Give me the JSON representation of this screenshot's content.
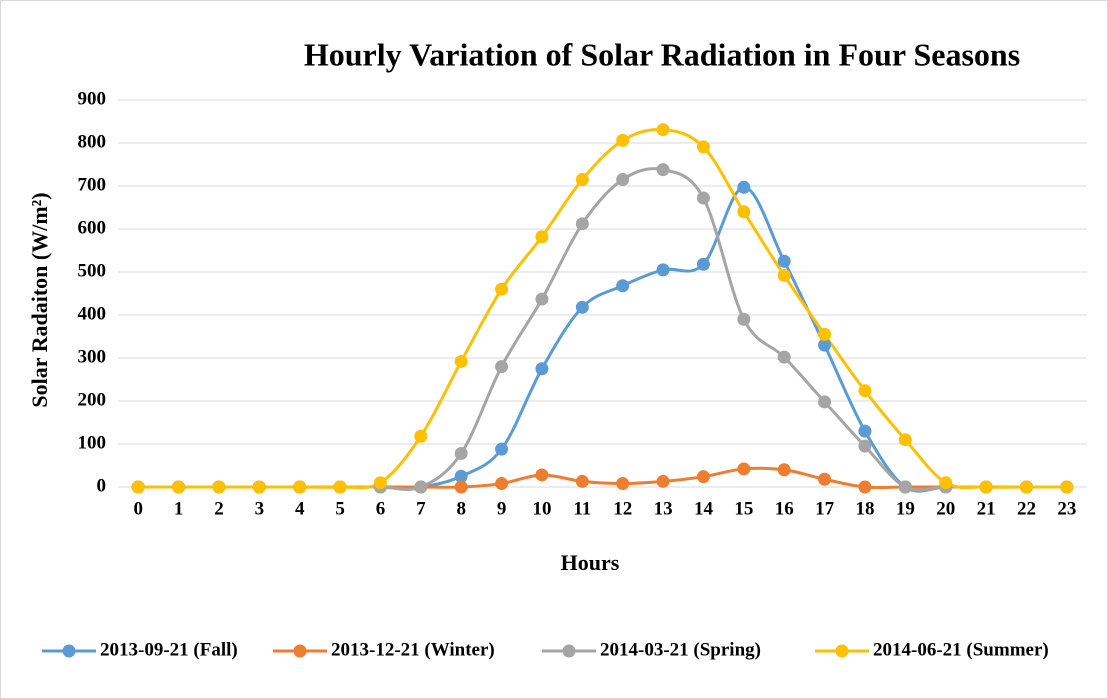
{
  "chart_data": {
    "type": "line",
    "title": "Hourly Variation of Solar Radiation in Four Seasons",
    "x_label": "Hours",
    "y_label": "Solar Radaiton (W/m²)",
    "categories": [
      "0",
      "1",
      "2",
      "3",
      "4",
      "5",
      "6",
      "7",
      "8",
      "9",
      "10",
      "11",
      "12",
      "13",
      "14",
      "15",
      "16",
      "17",
      "18",
      "19",
      "20",
      "21",
      "22",
      "23"
    ],
    "ylim": [
      0,
      900
    ],
    "yticks": [
      0,
      100,
      200,
      300,
      400,
      500,
      600,
      700,
      800,
      900
    ],
    "grid": true,
    "smooth": true,
    "legend": "bottom",
    "series": [
      {
        "name": "2013-09-21 (Fall)",
        "color": "#5b9bd5",
        "values": [
          0,
          0,
          0,
          0,
          0,
          0,
          0,
          0,
          25,
          88,
          275,
          418,
          468,
          505,
          518,
          697,
          525,
          330,
          130,
          0,
          0,
          0,
          0,
          0
        ]
      },
      {
        "name": "2013-12-21 (Winter)",
        "color": "#ed7d31",
        "values": [
          0,
          0,
          0,
          0,
          0,
          0,
          0,
          0,
          0,
          8,
          28,
          13,
          8,
          13,
          24,
          42,
          40,
          18,
          0,
          0,
          0,
          0,
          0,
          0
        ]
      },
      {
        "name": "2014-03-21 (Spring)",
        "color": "#a5a5a5",
        "values": [
          0,
          0,
          0,
          0,
          0,
          0,
          0,
          0,
          78,
          280,
          437,
          612,
          715,
          738,
          672,
          390,
          302,
          198,
          95,
          0,
          0,
          0,
          0,
          0
        ]
      },
      {
        "name": "2014-06-21 (Summer)",
        "color": "#ffc000",
        "values": [
          0,
          0,
          0,
          0,
          0,
          0,
          10,
          118,
          292,
          460,
          582,
          715,
          806,
          831,
          791,
          640,
          492,
          355,
          224,
          110,
          10,
          0,
          0,
          0
        ]
      }
    ]
  }
}
